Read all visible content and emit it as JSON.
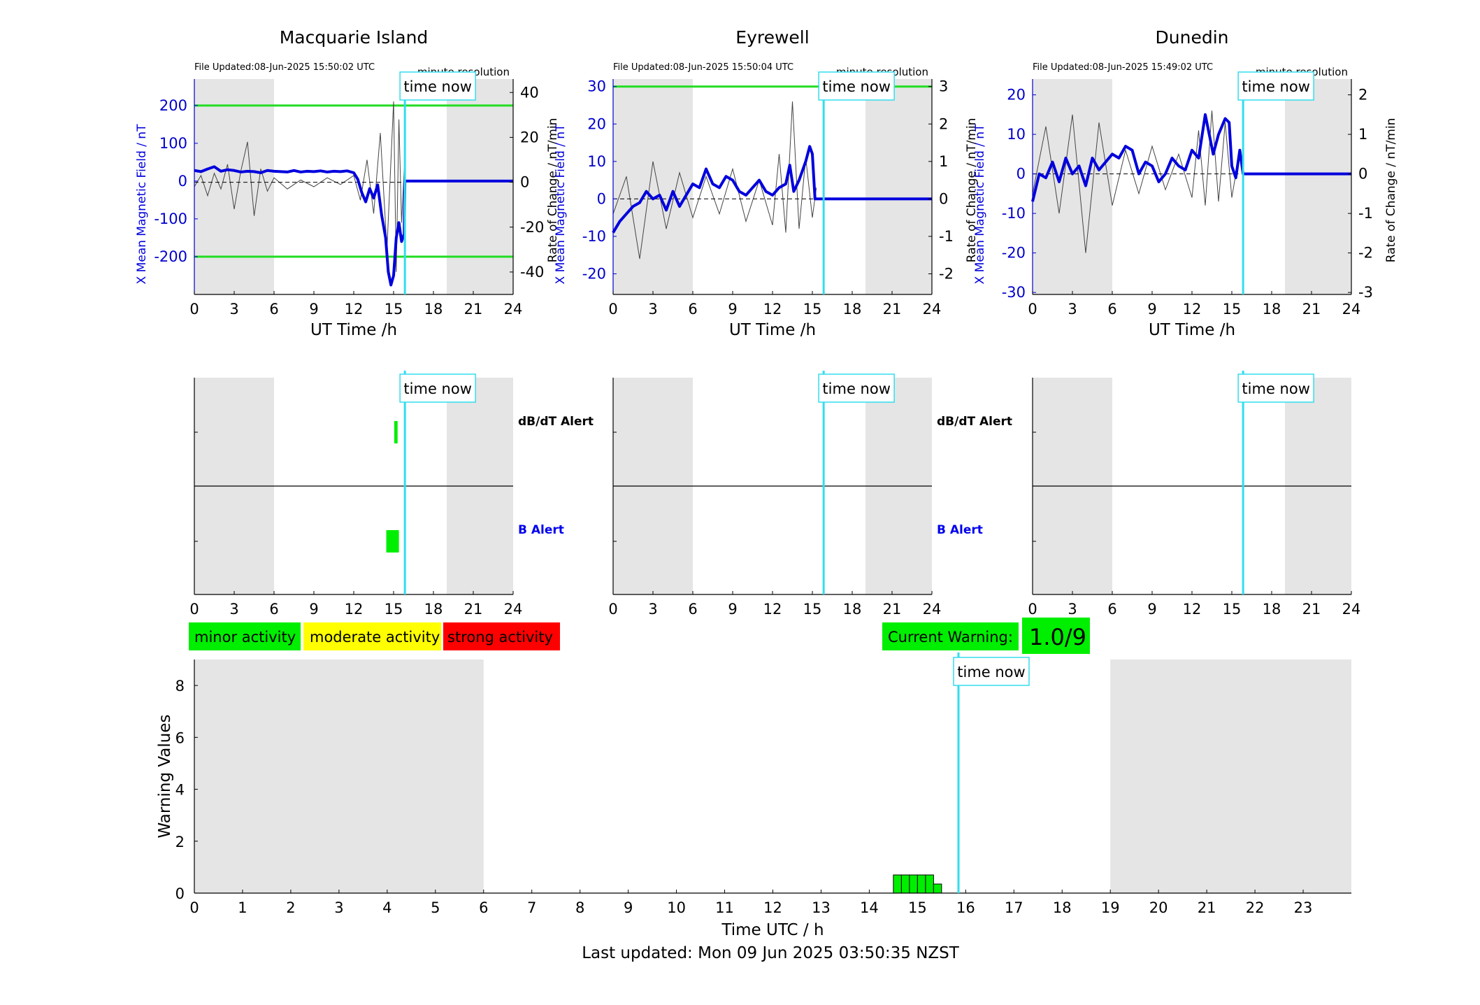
{
  "colors": {
    "shade": "#e5e5e5",
    "time_now": "#33ddee",
    "threshold": "#22dd22",
    "mean_field": "#0000dd",
    "rate": "#444444",
    "minor": "#00ee00",
    "moderate": "#ffff00",
    "strong": "#ff0000"
  },
  "time_now_label": "time now",
  "top_x_label": "UT Time /h",
  "left_y_label": "X Mean Magnetic Field / nT",
  "right_y_label": "Rate of Change / nT/min",
  "resolution_label": "minute resolution",
  "alert_labels": {
    "dbdt": "dB/dT Alert",
    "b": "B Alert"
  },
  "legend": {
    "minor": "minor activity",
    "moderate": "moderate activity",
    "strong": "strong activity"
  },
  "current_warning": {
    "label": "Current Warning:",
    "value": "1.0/9"
  },
  "footer": "Last updated: Mon 09 Jun 2025 03:50:35 NZST",
  "chart_data": [
    {
      "type": "line",
      "title": "Macquarie Island",
      "file_updated": "File Updated:08-Jun-2025 15:50:02 UTC",
      "xlabel": "UT Time /h",
      "ylabel": "X Mean Magnetic Field / nT",
      "ylabel_right": "Rate of Change / nT/min",
      "xlim": [
        0,
        24
      ],
      "ylim": [
        -300,
        270
      ],
      "ylim_right": [
        -50,
        46
      ],
      "yticks": [
        200,
        100,
        0,
        -100,
        -200
      ],
      "yticks_right": [
        40,
        20,
        0,
        -20,
        -40
      ],
      "shaded_ranges": [
        [
          0,
          6
        ],
        [
          19,
          24
        ]
      ],
      "time_now": 15.85,
      "thresholds": [
        200,
        -200
      ],
      "series": [
        {
          "name": "X Mean Magnetic Field / nT",
          "x": [
            0,
            0.5,
            1,
            1.5,
            2,
            2.5,
            3,
            3.5,
            4,
            4.5,
            5,
            5.5,
            6,
            6.5,
            7,
            7.5,
            8,
            8.5,
            9,
            9.5,
            10,
            10.5,
            11,
            11.5,
            12,
            12.3,
            12.6,
            12.9,
            13.2,
            13.5,
            13.8,
            14.1,
            14.4,
            14.6,
            14.8,
            15,
            15.2,
            15.4,
            15.6,
            15.8,
            15.85,
            16,
            18,
            20,
            22,
            24
          ],
          "y": [
            28,
            25,
            32,
            38,
            26,
            30,
            28,
            24,
            26,
            25,
            22,
            28,
            26,
            25,
            24,
            28,
            24,
            26,
            25,
            27,
            24,
            26,
            25,
            27,
            22,
            5,
            -30,
            -55,
            -20,
            -45,
            -10,
            -90,
            -150,
            -240,
            -275,
            -250,
            -150,
            -110,
            -160,
            -140,
            0,
            0,
            0,
            0,
            0,
            0
          ]
        },
        {
          "name": "Rate of Change / nT/min",
          "x": [
            0,
            0.5,
            1,
            1.5,
            2,
            2.5,
            3,
            3.5,
            4,
            4.5,
            5,
            5.5,
            6,
            7,
            8,
            9,
            10,
            11,
            12,
            12.5,
            13,
            13.5,
            14,
            14.5,
            15,
            15.2,
            15.4,
            15.6,
            15.8
          ],
          "y": [
            -2,
            3,
            -6,
            4,
            -3,
            8,
            -12,
            5,
            18,
            -15,
            6,
            -4,
            2,
            -3,
            1,
            -2,
            2,
            -1,
            3,
            -8,
            10,
            -14,
            22,
            -30,
            36,
            -40,
            28,
            -18,
            6
          ]
        }
      ],
      "alerts": {
        "dbdt": [
          [
            15.05,
            15.3
          ]
        ],
        "b": [
          [
            14.45,
            15.4
          ]
        ]
      }
    },
    {
      "type": "line",
      "title": "Eyrewell",
      "file_updated": "File Updated:08-Jun-2025 15:50:04 UTC",
      "xlabel": "UT Time /h",
      "ylabel": "X Mean Magnetic Field / nT",
      "ylabel_right": "Rate of Change / nT/min",
      "xlim": [
        0,
        24
      ],
      "ylim": [
        -25.5,
        32
      ],
      "ylim_right": [
        -2.55,
        3.2
      ],
      "yticks": [
        30,
        20,
        10,
        0,
        -10,
        -20
      ],
      "yticks_right": [
        3,
        2,
        1,
        0,
        -1,
        -2
      ],
      "shaded_ranges": [
        [
          0,
          6
        ],
        [
          19,
          24
        ]
      ],
      "time_now": 15.85,
      "thresholds": [
        30
      ],
      "series": [
        {
          "name": "X Mean Magnetic Field / nT",
          "x": [
            0,
            0.5,
            1,
            1.5,
            2,
            2.5,
            3,
            3.5,
            4,
            4.5,
            5,
            5.5,
            6,
            6.5,
            7,
            7.5,
            8,
            8.5,
            9,
            9.5,
            10,
            10.5,
            11,
            11.5,
            12,
            12.5,
            13,
            13.3,
            13.6,
            14,
            14.5,
            14.8,
            15,
            15.2,
            15.85,
            16,
            18,
            20,
            22,
            24
          ],
          "y": [
            -9,
            -6,
            -4,
            -2,
            -1,
            2,
            0,
            1,
            -3,
            2,
            -2,
            1,
            4,
            3,
            8,
            4,
            3,
            6,
            5,
            2,
            1,
            3,
            5,
            2,
            1,
            3,
            4,
            9,
            2,
            5,
            10,
            14,
            12,
            0,
            0,
            0,
            0,
            0,
            0,
            0
          ]
        },
        {
          "name": "Rate of Change / nT/min",
          "x": [
            0,
            1,
            2,
            3,
            4,
            5,
            6,
            7,
            8,
            9,
            10,
            11,
            12,
            12.5,
            13,
            13.5,
            14,
            14.5,
            15,
            15.3
          ],
          "y": [
            -0.4,
            0.6,
            -1.6,
            1,
            -0.8,
            0.7,
            -0.5,
            0.6,
            -0.4,
            0.8,
            -0.6,
            0.5,
            -0.7,
            1.2,
            -0.9,
            2.6,
            -0.8,
            1.1,
            -0.5,
            0.3
          ]
        }
      ],
      "alerts": {
        "dbdt": [],
        "b": []
      }
    },
    {
      "type": "line",
      "title": "Dunedin",
      "file_updated": "File Updated:08-Jun-2025 15:49:02 UTC",
      "xlabel": "UT Time /h",
      "ylabel": "X Mean Magnetic Field / nT",
      "ylabel_right": "Rate of Change / nT/min",
      "xlim": [
        0,
        24
      ],
      "ylim": [
        -30.5,
        24
      ],
      "ylim_right": [
        -3.05,
        2.4
      ],
      "yticks": [
        20,
        10,
        0,
        -10,
        -20,
        -30
      ],
      "yticks_right": [
        2,
        1,
        0,
        -1,
        -2,
        -3
      ],
      "shaded_ranges": [
        [
          0,
          6
        ],
        [
          19,
          24
        ]
      ],
      "time_now": 15.85,
      "thresholds": [],
      "series": [
        {
          "name": "X Mean Magnetic Field / nT",
          "x": [
            0,
            0.5,
            1,
            1.5,
            2,
            2.5,
            3,
            3.5,
            4,
            4.5,
            5,
            5.5,
            6,
            6.5,
            7,
            7.5,
            8,
            8.5,
            9,
            9.5,
            10,
            10.5,
            11,
            11.5,
            12,
            12.5,
            13,
            13.3,
            13.6,
            14,
            14.5,
            14.8,
            15,
            15.3,
            15.6,
            15.85,
            16,
            18,
            20,
            22,
            24
          ],
          "y": [
            -7,
            0,
            -1,
            3,
            -2,
            4,
            0,
            2,
            -3,
            4,
            1,
            3,
            5,
            4,
            7,
            6,
            0,
            3,
            2,
            -2,
            0,
            4,
            2,
            1,
            6,
            4,
            15,
            10,
            5,
            10,
            14,
            13,
            2,
            -1,
            6,
            0,
            0,
            0,
            0,
            0,
            0
          ]
        },
        {
          "name": "Rate of Change / nT/min",
          "x": [
            0,
            1,
            2,
            3,
            4,
            5,
            6,
            7,
            8,
            9,
            10,
            11,
            12,
            12.5,
            13,
            13.5,
            14,
            14.5,
            15,
            15.5
          ],
          "y": [
            -0.5,
            1.2,
            -1,
            1.5,
            -2,
            1.3,
            -0.8,
            0.6,
            -0.5,
            0.7,
            -0.4,
            0.5,
            -0.6,
            1.1,
            -0.8,
            1.6,
            -0.7,
            1.3,
            -0.6,
            0.4
          ]
        }
      ],
      "alerts": {
        "dbdt": [],
        "b": []
      }
    },
    {
      "type": "bar",
      "xlabel": "Time UTC / h",
      "ylabel": "Warning Values",
      "xlim": [
        0,
        24
      ],
      "ylim": [
        0,
        9
      ],
      "xticks": [
        0,
        1,
        2,
        3,
        4,
        5,
        6,
        7,
        8,
        9,
        10,
        11,
        12,
        13,
        14,
        15,
        16,
        17,
        18,
        19,
        20,
        21,
        22,
        23
      ],
      "yticks": [
        0,
        2,
        4,
        6,
        8
      ],
      "shaded_ranges": [
        [
          0,
          6
        ],
        [
          19,
          24
        ]
      ],
      "time_now": 15.85,
      "bars": {
        "x": [
          14.5,
          14.667,
          14.833,
          15.0,
          15.167,
          15.333
        ],
        "width": 0.1667,
        "values": [
          0.7,
          0.7,
          0.7,
          0.7,
          0.7,
          0.35
        ]
      }
    }
  ]
}
